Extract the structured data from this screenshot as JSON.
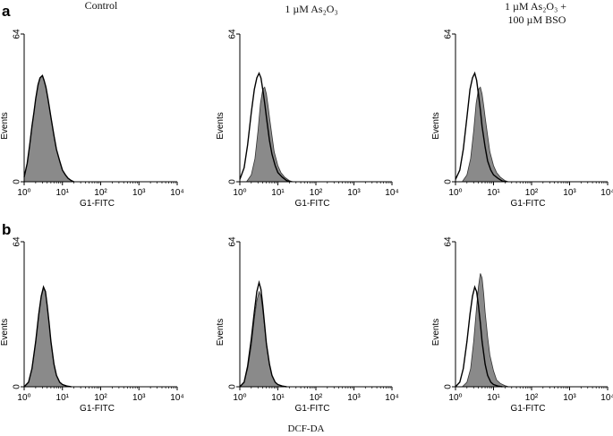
{
  "figure": {
    "footer_label": "DCF-DA",
    "column_titles": [
      [
        "Control"
      ],
      [
        "1 µM As₂O₃"
      ],
      [
        "1 µM As₂O₃ +",
        "100 µM BSO"
      ]
    ],
    "row_labels": [
      "a",
      "b"
    ]
  },
  "chart_data": [
    {
      "type": "area",
      "panel": "a-1",
      "xlabel": "G1-FITC",
      "ylabel": "Events",
      "xscale": "log",
      "xlim": [
        1,
        10000
      ],
      "ylim": [
        0,
        64
      ],
      "xticks": [
        "10⁰",
        "10¹",
        "10²",
        "10³",
        "10⁴"
      ],
      "yticks": [
        "0",
        "64"
      ],
      "series": [
        {
          "style": "filled-gray",
          "x": [
            1.0,
            1.2,
            1.4,
            1.6,
            1.8,
            2.0,
            2.3,
            2.6,
            3.0,
            3.3,
            3.7,
            4.2,
            5.0,
            6.0,
            7.0,
            8.5,
            10.0,
            12.0,
            14.0,
            17.0,
            20.0
          ],
          "y": [
            2,
            8,
            16,
            24,
            30,
            36,
            42,
            45,
            46,
            44,
            41,
            36,
            28,
            20,
            14,
            9,
            5,
            3,
            1.5,
            0.5,
            0
          ]
        },
        {
          "style": "outline",
          "x": [
            1.0,
            1.2,
            1.4,
            1.6,
            1.8,
            2.0,
            2.3,
            2.6,
            3.0,
            3.3,
            3.7,
            4.2,
            5.0,
            6.0,
            7.0,
            8.5,
            10.0,
            12.0,
            14.0,
            17.0,
            20.0
          ],
          "y": [
            2,
            8,
            16,
            24,
            30,
            36,
            42,
            45,
            46,
            44,
            41,
            36,
            28,
            20,
            14,
            9,
            5,
            3,
            1.5,
            0.5,
            0
          ]
        }
      ]
    },
    {
      "type": "area",
      "panel": "a-2",
      "xlabel": "G1-FITC",
      "ylabel": "Events",
      "xscale": "log",
      "xlim": [
        1,
        10000
      ],
      "ylim": [
        0,
        64
      ],
      "xticks": [
        "10⁰",
        "10¹",
        "10²",
        "10³",
        "10⁴"
      ],
      "yticks": [
        "0",
        "64"
      ],
      "series": [
        {
          "style": "filled-gray",
          "x": [
            1.5,
            2.0,
            2.5,
            3.0,
            3.5,
            4.0,
            4.5,
            5.0,
            5.5,
            6.0,
            7.0,
            8.0,
            10.0,
            12.0,
            15.0,
            20.0,
            25.0
          ],
          "y": [
            0,
            3,
            10,
            22,
            34,
            40,
            41,
            38,
            33,
            28,
            20,
            13,
            7,
            4,
            2,
            0.5,
            0
          ]
        },
        {
          "style": "outline",
          "x": [
            1.0,
            1.3,
            1.6,
            2.0,
            2.4,
            2.8,
            3.2,
            3.6,
            4.0,
            4.5,
            5.0,
            6.0,
            7.0,
            8.5,
            10.0,
            13.0,
            17.0,
            22.0
          ],
          "y": [
            1,
            6,
            16,
            30,
            40,
            45,
            47,
            45,
            40,
            34,
            28,
            18,
            12,
            7,
            4,
            2,
            0.5,
            0
          ]
        }
      ]
    },
    {
      "type": "area",
      "panel": "a-3",
      "xlabel": "G1-FITC",
      "ylabel": "Events",
      "xscale": "log",
      "xlim": [
        1,
        10000
      ],
      "ylim": [
        0,
        64
      ],
      "xticks": [
        "10⁰",
        "10¹",
        "10²",
        "10³",
        "10⁴"
      ],
      "yticks": [
        "0",
        "64"
      ],
      "series": [
        {
          "style": "filled-gray",
          "x": [
            1.5,
            2.0,
            2.5,
            3.0,
            3.5,
            4.0,
            4.5,
            5.0,
            5.5,
            6.0,
            7.0,
            8.0,
            10.0,
            12.0,
            15.0,
            20.0,
            25.0
          ],
          "y": [
            0,
            3,
            10,
            22,
            34,
            40,
            41,
            38,
            33,
            28,
            20,
            13,
            7,
            4,
            2,
            0.5,
            0
          ]
        },
        {
          "style": "outline",
          "x": [
            1.0,
            1.3,
            1.6,
            2.0,
            2.4,
            2.8,
            3.2,
            3.6,
            4.0,
            4.5,
            5.0,
            6.0,
            7.0,
            8.5,
            10.0,
            13.0,
            17.0,
            22.0
          ],
          "y": [
            1,
            5,
            14,
            28,
            40,
            45,
            47,
            44,
            38,
            31,
            24,
            15,
            9,
            5,
            3,
            1.5,
            0.3,
            0
          ]
        }
      ]
    },
    {
      "type": "area",
      "panel": "b-1",
      "xlabel": "G1-FITC",
      "ylabel": "Events",
      "xscale": "log",
      "xlim": [
        1,
        10000
      ],
      "ylim": [
        0,
        64
      ],
      "xticks": [
        "10⁰",
        "10¹",
        "10²",
        "10³",
        "10⁴"
      ],
      "yticks": [
        "0",
        "64"
      ],
      "series": [
        {
          "style": "filled-gray",
          "x": [
            1.0,
            1.3,
            1.6,
            2.0,
            2.4,
            2.8,
            3.2,
            3.6,
            4.0,
            4.5,
            5.0,
            6.0,
            7.0,
            8.5,
            10.0,
            13.0,
            17.0
          ],
          "y": [
            0,
            2,
            8,
            20,
            32,
            40,
            44,
            42,
            36,
            28,
            20,
            10,
            5,
            2,
            1,
            0.3,
            0
          ]
        },
        {
          "style": "outline",
          "x": [
            1.0,
            1.3,
            1.6,
            2.0,
            2.4,
            2.8,
            3.2,
            3.6,
            4.0,
            4.5,
            5.0,
            6.0,
            7.0,
            8.5,
            10.0,
            13.0,
            17.0
          ],
          "y": [
            0,
            2,
            8,
            20,
            32,
            40,
            44,
            42,
            36,
            28,
            20,
            10,
            5,
            2,
            1,
            0.3,
            0
          ]
        }
      ]
    },
    {
      "type": "area",
      "panel": "b-2",
      "xlabel": "G1-FITC",
      "ylabel": "Events",
      "xscale": "log",
      "xlim": [
        1,
        10000
      ],
      "ylim": [
        0,
        64
      ],
      "xticks": [
        "10⁰",
        "10¹",
        "10²",
        "10³",
        "10⁴"
      ],
      "yticks": [
        "0",
        "64"
      ],
      "series": [
        {
          "style": "filled-gray",
          "x": [
            1.0,
            1.3,
            1.6,
            2.0,
            2.4,
            2.8,
            3.2,
            3.6,
            4.0,
            4.5,
            5.0,
            6.0,
            7.0,
            8.5,
            10.0,
            13.0,
            17.0
          ],
          "y": [
            0,
            2,
            8,
            18,
            30,
            38,
            42,
            40,
            34,
            26,
            19,
            10,
            5,
            2,
            1,
            0.3,
            0
          ]
        },
        {
          "style": "outline",
          "x": [
            1.0,
            1.3,
            1.6,
            2.0,
            2.4,
            2.8,
            3.2,
            3.6,
            4.0,
            4.5,
            5.0,
            6.0,
            7.0,
            8.5,
            10.0,
            13.0,
            17.0
          ],
          "y": [
            0,
            2,
            9,
            21,
            33,
            42,
            46,
            43,
            36,
            27,
            19,
            10,
            5,
            2,
            1,
            0.3,
            0
          ]
        }
      ]
    },
    {
      "type": "area",
      "panel": "b-3",
      "xlabel": "G1-FITC",
      "ylabel": "Events",
      "xscale": "log",
      "xlim": [
        1,
        10000
      ],
      "ylim": [
        0,
        64
      ],
      "xticks": [
        "10⁰",
        "10¹",
        "10²",
        "10³",
        "10⁴"
      ],
      "yticks": [
        "0",
        "64"
      ],
      "series": [
        {
          "style": "filled-gray",
          "x": [
            1.5,
            2.0,
            2.5,
            3.0,
            3.5,
            4.0,
            4.5,
            5.0,
            5.5,
            6.0,
            7.0,
            8.0,
            10.0,
            12.0,
            15.0,
            20.0,
            25.0
          ],
          "y": [
            0,
            2,
            8,
            20,
            33,
            44,
            50,
            48,
            41,
            33,
            22,
            14,
            7,
            3,
            1.5,
            0.5,
            0
          ]
        },
        {
          "style": "outline",
          "x": [
            1.0,
            1.3,
            1.6,
            2.0,
            2.4,
            2.8,
            3.2,
            3.6,
            4.0,
            4.5,
            5.0,
            6.0,
            7.0,
            8.5,
            10.0,
            13.0,
            17.0
          ],
          "y": [
            0,
            2,
            8,
            20,
            32,
            40,
            44,
            42,
            36,
            28,
            20,
            10,
            5,
            2,
            1,
            0.3,
            0
          ]
        }
      ]
    }
  ]
}
